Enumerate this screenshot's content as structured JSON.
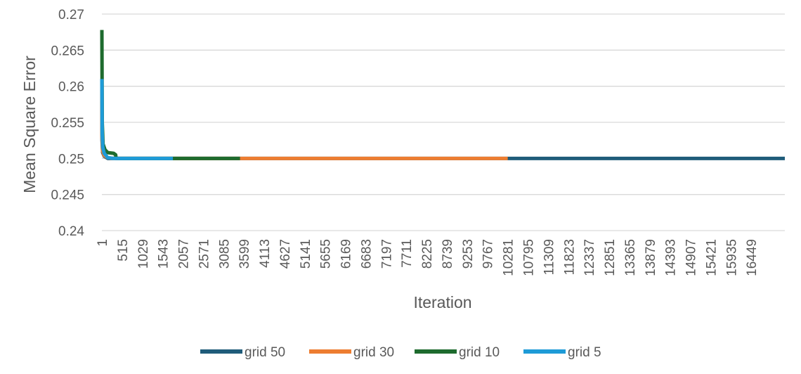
{
  "chart_data": {
    "type": "line",
    "title": "",
    "xlabel": "Iteration",
    "ylabel": "Mean Square Error",
    "ylim": [
      0.24,
      0.27
    ],
    "y_ticks": [
      "0.24",
      "0.245",
      "0.25",
      "0.255",
      "0.26",
      "0.265",
      "0.27"
    ],
    "x_range": [
      1,
      17300
    ],
    "x_ticks": [
      "1",
      "515",
      "1029",
      "1543",
      "2057",
      "2571",
      "3085",
      "3599",
      "4113",
      "4627",
      "5141",
      "5655",
      "6169",
      "6683",
      "7197",
      "7711",
      "8225",
      "8739",
      "9253",
      "9767",
      "10281",
      "10795",
      "11309",
      "11823",
      "12337",
      "12851",
      "13365",
      "13879",
      "14393",
      "14907",
      "15421",
      "15935",
      "16449"
    ],
    "grid": true,
    "legend_position": "bottom",
    "series": [
      {
        "name": "grid 50",
        "color": "#1F5C7A",
        "x": [
          1,
          5,
          20,
          60,
          150,
          300,
          10281,
          17300
        ],
        "y": [
          0.258,
          0.2525,
          0.2508,
          0.2503,
          0.25,
          0.25,
          0.25,
          0.25
        ]
      },
      {
        "name": "grid 30",
        "color": "#ED7D31",
        "x": [
          1,
          5,
          20,
          60,
          150,
          300,
          3500,
          10281
        ],
        "y": [
          0.2595,
          0.253,
          0.251,
          0.2504,
          0.2501,
          0.25,
          0.25,
          0.25
        ]
      },
      {
        "name": "grid 10",
        "color": "#1E6B2E",
        "x": [
          1,
          10,
          30,
          80,
          150,
          300,
          350,
          360,
          1800,
          3500
        ],
        "y": [
          0.2678,
          0.255,
          0.252,
          0.2512,
          0.2508,
          0.2507,
          0.2505,
          0.25,
          0.25,
          0.25
        ]
      },
      {
        "name": "grid 5",
        "color": "#1E9BD7",
        "x": [
          1,
          8,
          25,
          60,
          150,
          300,
          1800
        ],
        "y": [
          0.261,
          0.2535,
          0.2515,
          0.2507,
          0.2501,
          0.25,
          0.25
        ]
      }
    ]
  }
}
